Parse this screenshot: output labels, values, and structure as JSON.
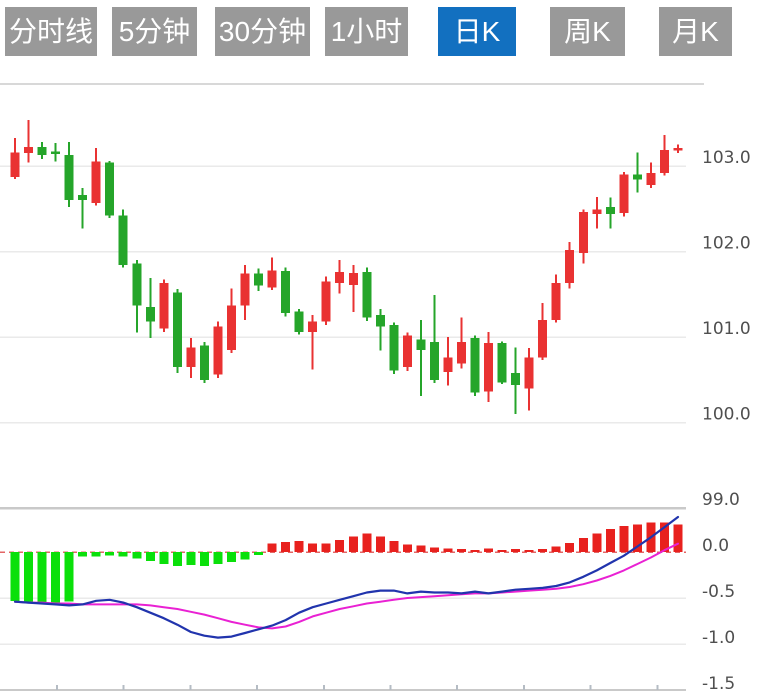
{
  "toolbar": {
    "buttons": [
      {
        "label": "分时线",
        "active": false
      },
      {
        "label": "5分钟",
        "active": false
      },
      {
        "label": "30分钟",
        "active": false
      },
      {
        "label": "1小时",
        "active": false
      },
      {
        "label": "日K",
        "active": true
      },
      {
        "label": "周K",
        "active": false
      },
      {
        "label": "月K",
        "active": false
      }
    ],
    "colors": {
      "inactive_bg": "#999999",
      "active_bg": "#1270c0",
      "text": "#ffffff"
    }
  },
  "chart_data": {
    "type": "candlestick",
    "title": "",
    "panels": [
      "price-candles",
      "macd"
    ],
    "legend": "none",
    "grid": true,
    "price_axis": {
      "side": "right",
      "tick_labels": [
        "103.0",
        "102.0",
        "101.0",
        "100.0",
        "99.0"
      ],
      "tick_values": [
        103.0,
        102.0,
        101.0,
        100.0,
        99.0
      ],
      "range": [
        99.0,
        103.6
      ]
    },
    "macd_axis": {
      "side": "right",
      "tick_labels": [
        "0.0",
        "-0.5",
        "-1.0",
        "-1.5"
      ],
      "tick_values": [
        0.0,
        -0.5,
        -1.0,
        -1.5
      ],
      "range": [
        -1.5,
        0.45
      ]
    },
    "x_axis": {
      "tick_count": 10,
      "labels_visible": false
    },
    "candles_ohlc": [
      [
        102.87,
        103.33,
        102.85,
        103.16
      ],
      [
        103.15,
        103.54,
        103.04,
        103.22
      ],
      [
        103.22,
        103.28,
        103.08,
        103.13
      ],
      [
        103.17,
        103.27,
        103.05,
        103.14
      ],
      [
        103.13,
        103.28,
        102.52,
        102.6
      ],
      [
        102.66,
        102.74,
        102.27,
        102.6
      ],
      [
        102.57,
        103.21,
        102.54,
        103.05
      ],
      [
        103.04,
        103.06,
        102.39,
        102.42
      ],
      [
        102.42,
        102.49,
        101.81,
        101.84
      ],
      [
        101.86,
        101.9,
        101.05,
        101.37
      ],
      [
        101.35,
        101.69,
        100.99,
        101.18
      ],
      [
        101.1,
        101.67,
        101.06,
        101.63
      ],
      [
        101.52,
        101.56,
        100.58,
        100.65
      ],
      [
        100.65,
        100.99,
        100.52,
        100.88
      ],
      [
        100.9,
        100.94,
        100.46,
        100.5
      ],
      [
        100.56,
        101.18,
        100.52,
        101.12
      ],
      [
        100.85,
        101.57,
        100.81,
        101.37
      ],
      [
        101.37,
        101.84,
        101.2,
        101.74
      ],
      [
        101.74,
        101.8,
        101.54,
        101.6
      ],
      [
        101.58,
        101.93,
        101.55,
        101.78
      ],
      [
        101.77,
        101.81,
        101.24,
        101.28
      ],
      [
        101.3,
        101.33,
        101.03,
        101.06
      ],
      [
        101.06,
        101.26,
        100.62,
        101.18
      ],
      [
        101.18,
        101.71,
        101.14,
        101.65
      ],
      [
        101.63,
        101.9,
        101.51,
        101.76
      ],
      [
        101.61,
        101.84,
        101.29,
        101.75
      ],
      [
        101.76,
        101.81,
        101.19,
        101.23
      ],
      [
        101.26,
        101.33,
        100.84,
        101.12
      ],
      [
        101.14,
        101.17,
        100.57,
        100.61
      ],
      [
        100.65,
        101.05,
        100.6,
        101.02
      ],
      [
        100.97,
        101.2,
        100.31,
        100.85
      ],
      [
        100.94,
        101.49,
        100.46,
        100.5
      ],
      [
        100.59,
        101.0,
        100.43,
        100.76
      ],
      [
        100.69,
        101.23,
        100.63,
        100.94
      ],
      [
        100.99,
        101.02,
        100.31,
        100.35
      ],
      [
        100.36,
        101.06,
        100.24,
        100.93
      ],
      [
        100.93,
        100.95,
        100.45,
        100.47
      ],
      [
        100.58,
        100.88,
        100.1,
        100.44
      ],
      [
        100.4,
        100.87,
        100.14,
        100.76
      ],
      [
        100.76,
        101.4,
        100.73,
        101.2
      ],
      [
        101.2,
        101.73,
        101.17,
        101.63
      ],
      [
        101.63,
        102.11,
        101.57,
        102.02
      ],
      [
        101.98,
        102.49,
        101.86,
        102.46
      ],
      [
        102.44,
        102.64,
        102.27,
        102.49
      ],
      [
        102.52,
        102.63,
        102.27,
        102.44
      ],
      [
        102.45,
        102.93,
        102.41,
        102.9
      ],
      [
        102.9,
        103.16,
        102.69,
        102.84
      ],
      [
        102.78,
        103.04,
        102.74,
        102.92
      ],
      [
        102.92,
        103.36,
        102.89,
        103.19
      ],
      [
        103.19,
        103.25,
        103.15,
        103.21
      ]
    ],
    "macd": {
      "histogram": [
        -0.53,
        -0.54,
        -0.55,
        -0.55,
        -0.54,
        -0.05,
        -0.05,
        -0.04,
        -0.05,
        -0.07,
        -0.1,
        -0.13,
        -0.15,
        -0.14,
        -0.15,
        -0.13,
        -0.11,
        -0.08,
        -0.03,
        0.09,
        0.11,
        0.12,
        0.09,
        0.09,
        0.13,
        0.17,
        0.2,
        0.17,
        0.12,
        0.08,
        0.07,
        0.05,
        0.04,
        0.03,
        0.02,
        0.04,
        0.02,
        0.03,
        0.02,
        0.03,
        0.06,
        0.1,
        0.15,
        0.2,
        0.25,
        0.28,
        0.3,
        0.32,
        0.32,
        0.3
      ],
      "dif": [
        -0.54,
        -0.55,
        -0.56,
        -0.57,
        -0.58,
        -0.57,
        -0.53,
        -0.52,
        -0.55,
        -0.6,
        -0.66,
        -0.72,
        -0.79,
        -0.87,
        -0.91,
        -0.93,
        -0.92,
        -0.88,
        -0.84,
        -0.8,
        -0.74,
        -0.66,
        -0.6,
        -0.56,
        -0.52,
        -0.48,
        -0.44,
        -0.42,
        -0.42,
        -0.45,
        -0.43,
        -0.44,
        -0.44,
        -0.45,
        -0.43,
        -0.45,
        -0.43,
        -0.41,
        -0.4,
        -0.39,
        -0.37,
        -0.33,
        -0.27,
        -0.2,
        -0.12,
        -0.04,
        0.06,
        0.16,
        0.27,
        0.38
      ],
      "dea": [
        -0.54,
        -0.55,
        -0.55,
        -0.56,
        -0.56,
        -0.57,
        -0.57,
        -0.57,
        -0.57,
        -0.57,
        -0.58,
        -0.6,
        -0.62,
        -0.65,
        -0.68,
        -0.72,
        -0.76,
        -0.79,
        -0.82,
        -0.83,
        -0.81,
        -0.76,
        -0.7,
        -0.66,
        -0.62,
        -0.59,
        -0.56,
        -0.54,
        -0.52,
        -0.5,
        -0.49,
        -0.48,
        -0.47,
        -0.46,
        -0.45,
        -0.45,
        -0.44,
        -0.43,
        -0.42,
        -0.41,
        -0.4,
        -0.38,
        -0.35,
        -0.31,
        -0.26,
        -0.2,
        -0.13,
        -0.06,
        0.02,
        0.09
      ]
    },
    "colors": {
      "up": "#e93232",
      "down": "#25a52a",
      "hist_pos": "#e8211e",
      "hist_neg": "#0ae00a",
      "dif": "#2134ad",
      "dea": "#e921d3",
      "grid": "#eaeaea",
      "axis_line": "#c9c9c9",
      "top_border": "#d8d8d8",
      "zero_line": "#e36666",
      "tick": "#b5bcc4",
      "label_text": "#4f4f4f"
    }
  }
}
